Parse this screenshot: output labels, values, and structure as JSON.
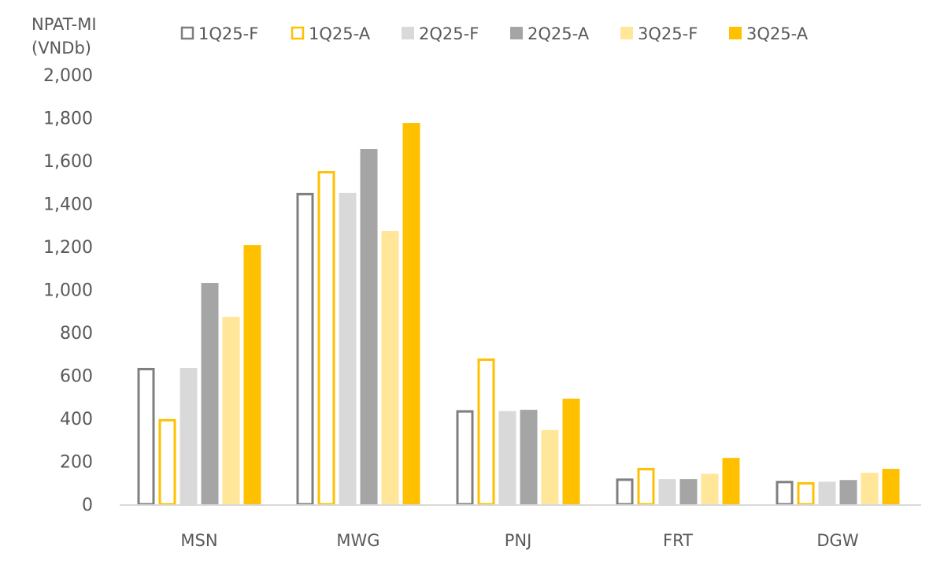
{
  "chart_data": {
    "type": "bar",
    "title": "",
    "ylabel_lines": [
      "NPAT-MI",
      "(VNDb)"
    ],
    "xlabel": "",
    "ylim": [
      0,
      2000
    ],
    "yticks": [
      0,
      200,
      400,
      600,
      800,
      1000,
      1200,
      1400,
      1600,
      1800,
      2000
    ],
    "ytick_labels": [
      "0",
      "200",
      "400",
      "600",
      "800",
      "1,000",
      "1,200",
      "1,400",
      "1,600",
      "1,800",
      "2,000"
    ],
    "grid": false,
    "legend_position": "top",
    "categories": [
      "MSN",
      "MWG",
      "PNJ",
      "FRT",
      "DGW"
    ],
    "series": [
      {
        "name": "1Q25-F",
        "style": "outline",
        "color": "#7f7f7f",
        "values": [
          635,
          1450,
          438,
          120,
          109
        ]
      },
      {
        "name": "1Q25-A",
        "style": "outline",
        "color": "#ffc000",
        "values": [
          397,
          1552,
          679,
          169,
          103
        ]
      },
      {
        "name": "2Q25-F",
        "style": "fill",
        "color": "#d9d9d9",
        "values": [
          635,
          1450,
          434,
          117,
          105
        ]
      },
      {
        "name": "2Q25-A",
        "style": "fill",
        "color": "#a5a5a5",
        "values": [
          1031,
          1655,
          440,
          117,
          113
        ]
      },
      {
        "name": "3Q25-F",
        "style": "fill",
        "color": "#ffe699",
        "values": [
          873,
          1273,
          346,
          142,
          147
        ]
      },
      {
        "name": "3Q25-A",
        "style": "fill",
        "color": "#ffc000",
        "values": [
          1207,
          1776,
          492,
          216,
          165
        ]
      }
    ]
  }
}
